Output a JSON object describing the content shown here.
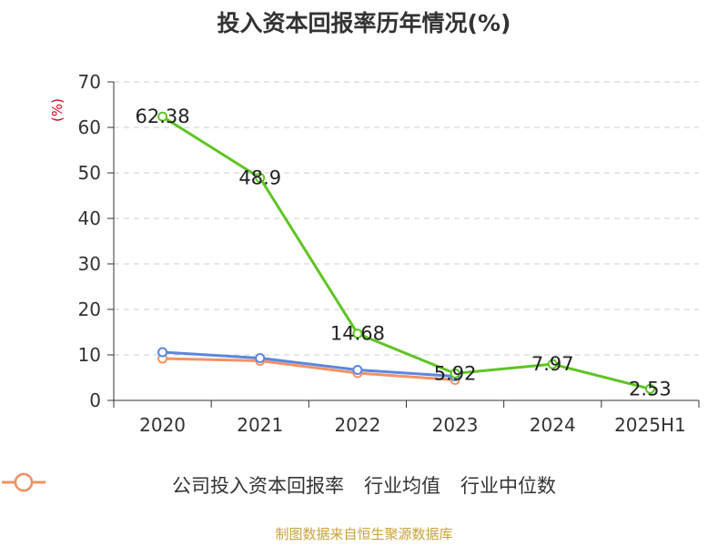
{
  "title": "投入资本回报率历年情况(%)",
  "unit_label": "(%)",
  "source": "制图数据来自恒生聚源数据库",
  "chart_data": {
    "type": "line",
    "categories": [
      "2020",
      "2021",
      "2022",
      "2023",
      "2024",
      "2025H1"
    ],
    "ylim": [
      0,
      70
    ],
    "yticks": [
      0,
      10,
      20,
      30,
      40,
      50,
      60,
      70
    ],
    "grid": true,
    "legend_position": "bottom",
    "series": [
      {
        "name": "公司投入资本回报率",
        "color": "#5ec423",
        "values": [
          62.38,
          48.9,
          14.68,
          5.92,
          7.97,
          2.53
        ],
        "labels": [
          "62.38",
          "48.9",
          "14.68",
          "5.92",
          "7.97",
          "2.53"
        ]
      },
      {
        "name": "行业均值",
        "color": "#5b87e0",
        "values": [
          10.6,
          9.3,
          6.7,
          5.3,
          null,
          null
        ]
      },
      {
        "name": "行业中位数",
        "color": "#f39263",
        "values": [
          9.2,
          8.7,
          6.0,
          4.5,
          null,
          null
        ]
      }
    ]
  }
}
